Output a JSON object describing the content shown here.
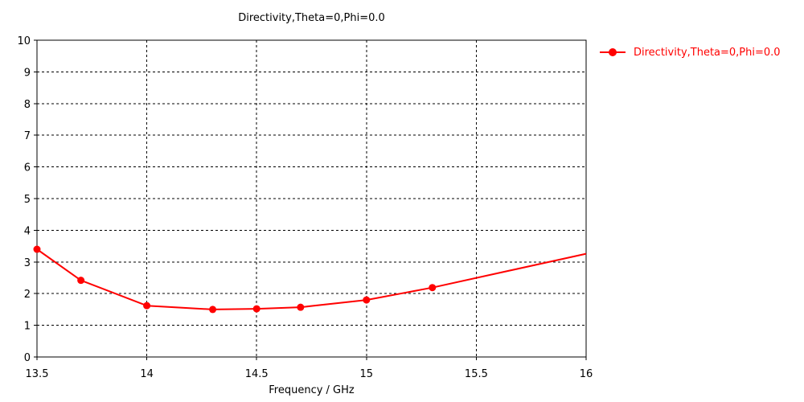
{
  "chart_data": {
    "type": "line",
    "title": "Directivity,Theta=0,Phi=0.0",
    "xlabel": "Frequency / GHz",
    "ylabel": "",
    "xlim": [
      13.5,
      16
    ],
    "ylim": [
      0,
      10
    ],
    "xticks": [
      "13.5",
      "14",
      "14.5",
      "15",
      "15.5",
      "16"
    ],
    "yticks": [
      "0",
      "1",
      "2",
      "3",
      "4",
      "5",
      "6",
      "7",
      "8",
      "9",
      "10"
    ],
    "grid": true,
    "legend_position": "right",
    "series": [
      {
        "name": "Directivity,Theta=0,Phi=0.0",
        "color": "#ff0000",
        "marker": "circle",
        "x": [
          13.5,
          13.7,
          14.0,
          14.3,
          14.5,
          14.7,
          15.0,
          15.3,
          16.0
        ],
        "y": [
          3.4,
          2.42,
          1.62,
          1.5,
          1.52,
          1.57,
          1.8,
          2.19,
          3.26
        ],
        "markers": [
          true,
          true,
          true,
          true,
          true,
          true,
          true,
          true,
          false
        ]
      }
    ]
  }
}
